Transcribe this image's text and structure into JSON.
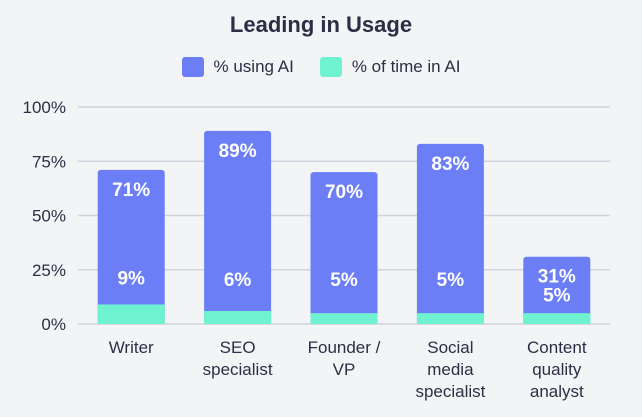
{
  "chart_data": {
    "type": "bar",
    "title": "Leading in Usage",
    "categories": [
      [
        "Writer"
      ],
      [
        "SEO",
        "specialist"
      ],
      [
        "Founder /",
        "VP"
      ],
      [
        "Social",
        "media",
        "specialist"
      ],
      [
        "Content",
        "quality",
        "analyst"
      ]
    ],
    "series": [
      {
        "name": "% using AI",
        "color": "#6c7ef6",
        "values": [
          71,
          89,
          70,
          83,
          31
        ],
        "labels": [
          "71%",
          "89%",
          "70%",
          "83%",
          "31%"
        ]
      },
      {
        "name": "% of time in AI",
        "color": "#6ff2cf",
        "values": [
          9,
          6,
          5,
          5,
          5
        ],
        "labels": [
          "9%",
          "6%",
          "5%",
          "5%",
          "5%"
        ]
      }
    ],
    "ylim": [
      0,
      100
    ],
    "yticks": [
      "0%",
      "25%",
      "50%",
      "75%",
      "100%"
    ],
    "xlabel": "",
    "ylabel": "",
    "grid": true,
    "legend": "top-center"
  }
}
